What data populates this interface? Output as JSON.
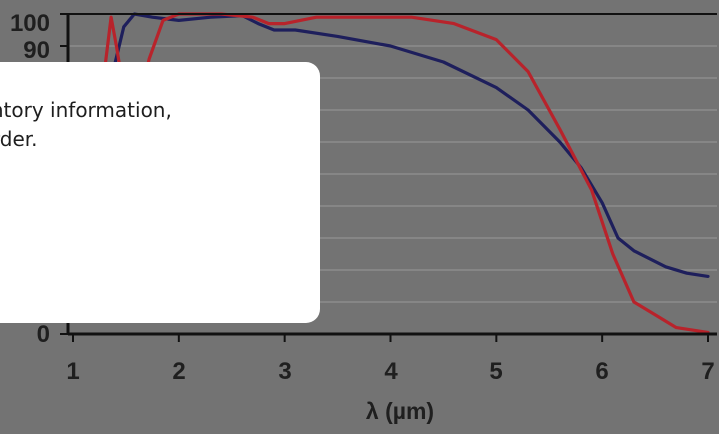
{
  "chart_data": {
    "type": "line",
    "xlabel": "λ (µm)",
    "ylabel": "",
    "xlim": [
      1,
      7
    ],
    "ylim": [
      0,
      100
    ],
    "x_ticks": [
      "1",
      "2",
      "3",
      "4",
      "5",
      "6",
      "7"
    ],
    "y_ticks": [
      "100",
      "90",
      "0"
    ],
    "grid": true,
    "series": [
      {
        "color": "#1e1f5c",
        "points": [
          [
            1.33,
            55
          ],
          [
            1.4,
            85
          ],
          [
            1.48,
            96
          ],
          [
            1.58,
            100
          ],
          [
            1.75,
            99
          ],
          [
            2.0,
            98
          ],
          [
            2.3,
            99
          ],
          [
            2.6,
            99.5
          ],
          [
            2.75,
            97
          ],
          [
            2.9,
            95
          ],
          [
            3.1,
            95
          ],
          [
            3.5,
            93
          ],
          [
            4.0,
            90
          ],
          [
            4.5,
            85
          ],
          [
            5.0,
            77
          ],
          [
            5.3,
            70
          ],
          [
            5.6,
            60
          ],
          [
            5.8,
            52
          ],
          [
            6.0,
            41
          ],
          [
            6.15,
            30
          ],
          [
            6.3,
            26
          ],
          [
            6.45,
            23.5
          ],
          [
            6.6,
            21
          ],
          [
            6.8,
            19
          ],
          [
            7.0,
            18
          ]
        ]
      },
      {
        "color": "#b8232b",
        "points": [
          [
            1.3,
            83
          ],
          [
            1.36,
            99
          ],
          [
            1.41,
            90
          ],
          [
            1.45,
            82
          ],
          [
            1.55,
            68
          ],
          [
            1.62,
            72
          ],
          [
            1.72,
            86
          ],
          [
            1.85,
            98
          ],
          [
            2.0,
            100
          ],
          [
            2.4,
            100
          ],
          [
            2.7,
            99
          ],
          [
            2.85,
            97
          ],
          [
            3.0,
            97
          ],
          [
            3.3,
            99
          ],
          [
            3.8,
            99
          ],
          [
            4.2,
            99
          ],
          [
            4.6,
            97
          ],
          [
            5.0,
            92
          ],
          [
            5.3,
            82
          ],
          [
            5.6,
            64
          ],
          [
            5.9,
            45
          ],
          [
            6.1,
            25
          ],
          [
            6.3,
            10
          ],
          [
            6.5,
            6
          ],
          [
            6.7,
            2
          ],
          [
            7.0,
            0.5
          ]
        ]
      }
    ]
  },
  "dialog": {
    "message": "te inventory information,\n your order."
  }
}
